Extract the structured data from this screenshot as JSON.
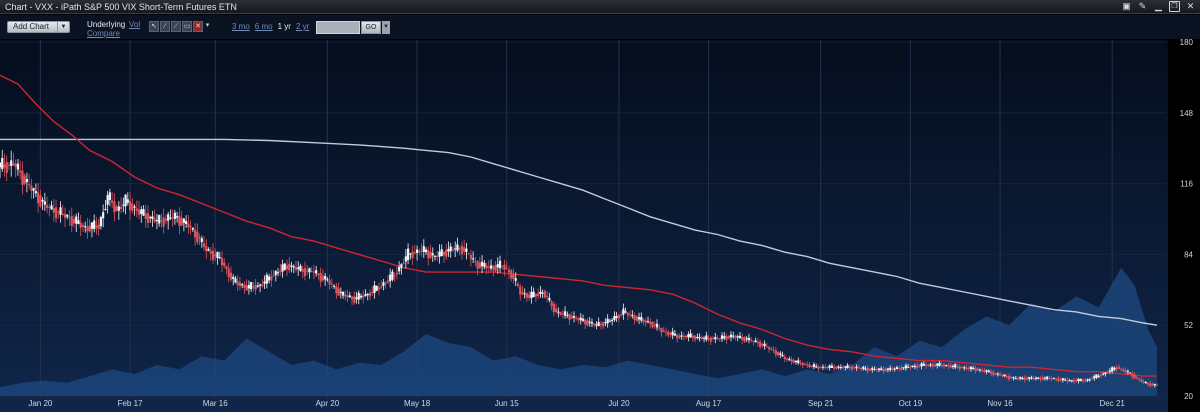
{
  "window": {
    "title": "Chart - VXX - iPath S&P 500 VIX Short-Term Futures ETN",
    "icons": [
      "camera-icon",
      "wrench-icon",
      "minimize-icon",
      "restore-icon",
      "close-icon"
    ]
  },
  "toolbar": {
    "add_chart_label": "Add Chart",
    "underlying_label": "Underlying",
    "vol_label": "Vol",
    "compare_label": "Compare",
    "tools": [
      "pointer-tool-icon",
      "line-tool-icon",
      "trend-tool-icon",
      "rect-tool-icon",
      "delete-tool-icon"
    ],
    "ranges": [
      {
        "label": "3 mo",
        "active": false
      },
      {
        "label": "6 mo",
        "active": false
      },
      {
        "label": "1 yr",
        "active": true
      },
      {
        "label": "2 yr",
        "active": false
      }
    ],
    "date_value": "",
    "go_label": "GO"
  },
  "colors": {
    "background_top": "#050d1d",
    "background_bottom": "#10264a",
    "grid": "#22324d",
    "candle_up": "#f2f4f7",
    "candle_down": "#e0535a",
    "ma_short": "#d0252e",
    "ma_long": "#c3cadb",
    "volume": "#1d4a82"
  },
  "chart_data": {
    "type": "candlestick",
    "ylim": [
      20,
      180
    ],
    "yticks": [
      180,
      148,
      116,
      84,
      52,
      20
    ],
    "x_domain": [
      0,
      260
    ],
    "xticks": [
      {
        "label": "Jan 20",
        "x": 9
      },
      {
        "label": "Feb 17",
        "x": 29
      },
      {
        "label": "Mar 16",
        "x": 48
      },
      {
        "label": "Apr 20",
        "x": 73
      },
      {
        "label": "May 18",
        "x": 93
      },
      {
        "label": "Jun 15",
        "x": 113
      },
      {
        "label": "Jul 20",
        "x": 138
      },
      {
        "label": "Aug 17",
        "x": 158
      },
      {
        "label": "Sep 21",
        "x": 183
      },
      {
        "label": "Oct 19",
        "x": 203
      },
      {
        "label": "Nov 16",
        "x": 223
      },
      {
        "label": "Dec 21",
        "x": 248
      }
    ],
    "price": [
      [
        0,
        124
      ],
      [
        3,
        125
      ],
      [
        6,
        116
      ],
      [
        10,
        106
      ],
      [
        14,
        102
      ],
      [
        19,
        96
      ],
      [
        22,
        97
      ],
      [
        24,
        110
      ],
      [
        26,
        104
      ],
      [
        28,
        108
      ],
      [
        31,
        103
      ],
      [
        35,
        99
      ],
      [
        39,
        101
      ],
      [
        42,
        97
      ],
      [
        44,
        92
      ],
      [
        46,
        86
      ],
      [
        49,
        82
      ],
      [
        52,
        72
      ],
      [
        55,
        69
      ],
      [
        58,
        70
      ],
      [
        61,
        75
      ],
      [
        64,
        79
      ],
      [
        67,
        77
      ],
      [
        70,
        76
      ],
      [
        73,
        72
      ],
      [
        76,
        66
      ],
      [
        79,
        64
      ],
      [
        82,
        66
      ],
      [
        85,
        70
      ],
      [
        88,
        75
      ],
      [
        91,
        84
      ],
      [
        94,
        86
      ],
      [
        97,
        83
      ],
      [
        100,
        86
      ],
      [
        103,
        87
      ],
      [
        106,
        80
      ],
      [
        109,
        78
      ],
      [
        112,
        79
      ],
      [
        114,
        75
      ],
      [
        116,
        67
      ],
      [
        118,
        65
      ],
      [
        121,
        67
      ],
      [
        124,
        58
      ],
      [
        127,
        56
      ],
      [
        130,
        54
      ],
      [
        133,
        52
      ],
      [
        136,
        54
      ],
      [
        139,
        58
      ],
      [
        142,
        55
      ],
      [
        145,
        53
      ],
      [
        148,
        49
      ],
      [
        151,
        47
      ],
      [
        154,
        47
      ],
      [
        157,
        46
      ],
      [
        160,
        46
      ],
      [
        163,
        47
      ],
      [
        166,
        46
      ],
      [
        169,
        44
      ],
      [
        172,
        41
      ],
      [
        175,
        37
      ],
      [
        178,
        35
      ],
      [
        182,
        33
      ],
      [
        186,
        33
      ],
      [
        190,
        33
      ],
      [
        194,
        32
      ],
      [
        198,
        32
      ],
      [
        202,
        33
      ],
      [
        206,
        34
      ],
      [
        210,
        34
      ],
      [
        214,
        33
      ],
      [
        218,
        32
      ],
      [
        222,
        30
      ],
      [
        226,
        28
      ],
      [
        230,
        28
      ],
      [
        234,
        28
      ],
      [
        238,
        27
      ],
      [
        242,
        27
      ],
      [
        246,
        30
      ],
      [
        249,
        33
      ],
      [
        252,
        30
      ],
      [
        255,
        26
      ],
      [
        257,
        25
      ]
    ],
    "ma_short": [
      [
        0,
        165
      ],
      [
        4,
        161
      ],
      [
        8,
        152
      ],
      [
        12,
        144
      ],
      [
        16,
        138
      ],
      [
        20,
        131
      ],
      [
        25,
        126
      ],
      [
        30,
        119
      ],
      [
        35,
        114
      ],
      [
        40,
        111
      ],
      [
        45,
        107
      ],
      [
        50,
        103
      ],
      [
        55,
        99
      ],
      [
        60,
        96
      ],
      [
        65,
        92
      ],
      [
        70,
        90
      ],
      [
        75,
        87
      ],
      [
        80,
        84
      ],
      [
        85,
        81
      ],
      [
        90,
        78
      ],
      [
        95,
        76
      ],
      [
        100,
        76
      ],
      [
        105,
        76
      ],
      [
        110,
        76
      ],
      [
        115,
        75
      ],
      [
        120,
        74
      ],
      [
        125,
        73
      ],
      [
        130,
        72
      ],
      [
        135,
        70
      ],
      [
        140,
        69
      ],
      [
        145,
        68
      ],
      [
        150,
        66
      ],
      [
        155,
        62
      ],
      [
        160,
        57
      ],
      [
        165,
        53
      ],
      [
        170,
        50
      ],
      [
        175,
        46
      ],
      [
        180,
        43
      ],
      [
        185,
        41
      ],
      [
        190,
        40
      ],
      [
        195,
        38
      ],
      [
        200,
        37
      ],
      [
        205,
        36
      ],
      [
        210,
        36
      ],
      [
        215,
        35
      ],
      [
        220,
        34
      ],
      [
        225,
        33
      ],
      [
        230,
        33
      ],
      [
        235,
        32
      ],
      [
        240,
        31
      ],
      [
        245,
        31
      ],
      [
        250,
        30
      ],
      [
        255,
        29
      ],
      [
        258,
        29
      ]
    ],
    "ma_long": [
      [
        0,
        136
      ],
      [
        20,
        136
      ],
      [
        40,
        136
      ],
      [
        50,
        136
      ],
      [
        60,
        135.5
      ],
      [
        70,
        134.5
      ],
      [
        80,
        133.5
      ],
      [
        90,
        132
      ],
      [
        95,
        131
      ],
      [
        100,
        130
      ],
      [
        105,
        128
      ],
      [
        110,
        125
      ],
      [
        115,
        122
      ],
      [
        120,
        119
      ],
      [
        125,
        116
      ],
      [
        130,
        113
      ],
      [
        135,
        109
      ],
      [
        140,
        105
      ],
      [
        145,
        101
      ],
      [
        150,
        98
      ],
      [
        155,
        95
      ],
      [
        160,
        93
      ],
      [
        165,
        90
      ],
      [
        170,
        88
      ],
      [
        175,
        85
      ],
      [
        180,
        83
      ],
      [
        185,
        80
      ],
      [
        190,
        78
      ],
      [
        195,
        76
      ],
      [
        200,
        74
      ],
      [
        205,
        71
      ],
      [
        210,
        69
      ],
      [
        215,
        67
      ],
      [
        220,
        65
      ],
      [
        225,
        63
      ],
      [
        230,
        61
      ],
      [
        235,
        59
      ],
      [
        240,
        58
      ],
      [
        245,
        56
      ],
      [
        250,
        55
      ],
      [
        255,
        53
      ],
      [
        258,
        52
      ]
    ],
    "volume": [
      [
        0,
        4
      ],
      [
        5,
        6
      ],
      [
        10,
        7
      ],
      [
        15,
        6
      ],
      [
        20,
        9
      ],
      [
        25,
        12
      ],
      [
        30,
        10
      ],
      [
        35,
        14
      ],
      [
        40,
        12
      ],
      [
        45,
        18
      ],
      [
        50,
        16
      ],
      [
        55,
        26
      ],
      [
        60,
        20
      ],
      [
        65,
        14
      ],
      [
        70,
        16
      ],
      [
        75,
        12
      ],
      [
        80,
        15
      ],
      [
        85,
        14
      ],
      [
        90,
        20
      ],
      [
        95,
        28
      ],
      [
        100,
        24
      ],
      [
        105,
        22
      ],
      [
        110,
        16
      ],
      [
        115,
        18
      ],
      [
        120,
        14
      ],
      [
        125,
        12
      ],
      [
        130,
        14
      ],
      [
        135,
        13
      ],
      [
        140,
        16
      ],
      [
        145,
        14
      ],
      [
        150,
        12
      ],
      [
        155,
        10
      ],
      [
        160,
        8
      ],
      [
        165,
        10
      ],
      [
        170,
        12
      ],
      [
        175,
        9
      ],
      [
        180,
        12
      ],
      [
        185,
        10
      ],
      [
        190,
        14
      ],
      [
        195,
        22
      ],
      [
        200,
        18
      ],
      [
        205,
        25
      ],
      [
        210,
        22
      ],
      [
        215,
        30
      ],
      [
        220,
        36
      ],
      [
        225,
        32
      ],
      [
        230,
        42
      ],
      [
        235,
        38
      ],
      [
        240,
        45
      ],
      [
        245,
        40
      ],
      [
        250,
        58
      ],
      [
        253,
        50
      ],
      [
        256,
        30
      ],
      [
        258,
        22
      ]
    ]
  }
}
